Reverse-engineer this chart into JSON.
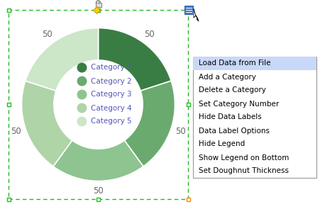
{
  "categories": [
    "Category 1",
    "Category 2",
    "Category 3",
    "Category 4",
    "Category 5"
  ],
  "values": [
    50,
    50,
    50,
    50,
    50
  ],
  "colors": [
    "#3a7d44",
    "#6aaa6e",
    "#8ec490",
    "#aed4a8",
    "#cce6c8"
  ],
  "bg_color": "#ffffff",
  "doughnut_inner_ratio": 0.58,
  "label_color": "#5555bb",
  "label_fontsize": 7.5,
  "data_label_value": "50",
  "data_label_fontsize": 8.5,
  "data_label_color": "#666666",
  "border_color": "#22bb22",
  "menu_items": [
    "Load Data from File",
    "Add a Category",
    "Delete a Category",
    "Set Category Number",
    "Hide Data Labels",
    "Data Label Options",
    "Hide Legend",
    "Show Legend on Bottom",
    "Set Doughnut Thickness"
  ],
  "menu_highlight": 0,
  "menu_highlight_color": "#c8d8f8",
  "menu_border_color": "#999999",
  "menu_text_color": "#000000",
  "menu_fontsize": 7.5,
  "handle_color_green": "#22bb22",
  "handle_color_orange": "#ff8800",
  "handle_color_blue": "#4477cc",
  "handle_size": 5,
  "diamond_color": "#ffcc00",
  "diamond_edge_color": "#cc9900"
}
